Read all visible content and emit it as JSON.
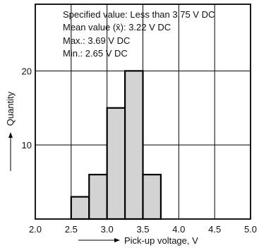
{
  "chart_data": {
    "type": "bar",
    "bins": [
      {
        "from": 2.5,
        "to": 2.75,
        "count": 3
      },
      {
        "from": 2.75,
        "to": 3.0,
        "count": 6
      },
      {
        "from": 3.0,
        "to": 3.25,
        "count": 15
      },
      {
        "from": 3.25,
        "to": 3.5,
        "count": 20
      },
      {
        "from": 3.5,
        "to": 3.75,
        "count": 6
      }
    ],
    "xlabel": "Pick-up voltage, V",
    "ylabel": "Quantity",
    "xlim": [
      2.0,
      5.0
    ],
    "ylim": [
      0,
      29
    ],
    "x_ticks": [
      "2.0",
      "2.5",
      "3.0",
      "3.5",
      "4.0",
      "4.5",
      "5.0"
    ],
    "y_ticks": [
      "10",
      "20"
    ],
    "grid": true,
    "bar_color": "#d3d3d3",
    "annotations": [
      "Specified value: Less than 3.75 V DC",
      "Mean value (x̄): 3.22 V DC",
      "Max.: 3.69 V DC",
      "Min.: 2.65 V DC"
    ]
  }
}
